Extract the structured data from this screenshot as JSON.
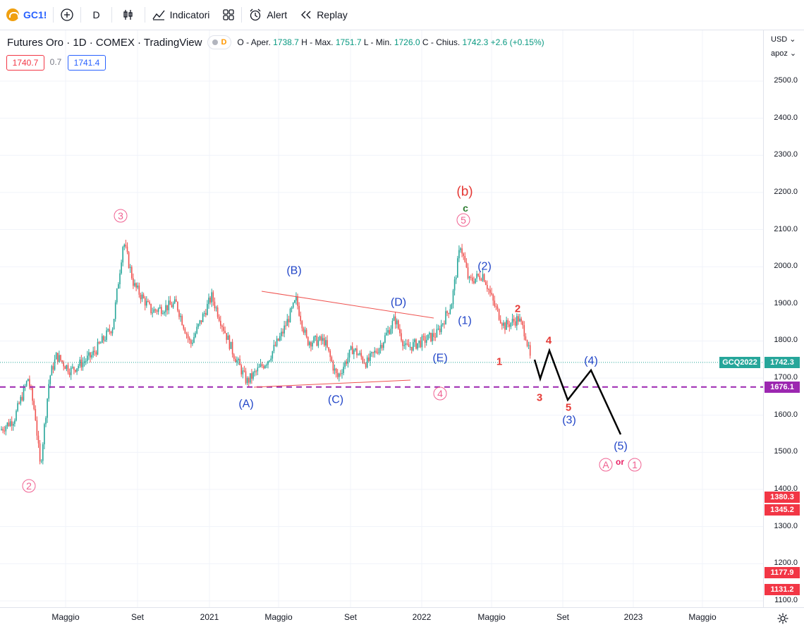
{
  "toolbar": {
    "symbol": "GC1!",
    "interval": "D",
    "indicators_label": "Indicatori",
    "alert_label": "Alert",
    "replay_label": "Replay"
  },
  "legend": {
    "title": "Futures Oro · 1D · COMEX · TradingView",
    "interval_badge": "D",
    "ohlc": {
      "open_label": "O - Aper.",
      "open": "1738.7",
      "high_label": "H - Max.",
      "high": "1751.7",
      "low_label": "L - Min.",
      "low": "1726.0",
      "close_label": "C - Chius.",
      "close": "1742.3",
      "change": "+2.6 (+0.15%)"
    },
    "bid": "1740.7",
    "spread": "0.7",
    "ask": "1741.4"
  },
  "price_axis": {
    "currency": "USD",
    "scale_mode": "apoz",
    "ticks": [
      "2500.0",
      "2400.0",
      "2300.0",
      "2200.0",
      "2100.0",
      "2000.0",
      "1900.0",
      "1800.0",
      "1700.0",
      "1600.0",
      "1500.0",
      "1400.0",
      "1300.0",
      "1200.0",
      "1100.0"
    ],
    "labels": [
      {
        "text": "GCQ2022",
        "color": "#26a69a"
      },
      {
        "text": "1742.3",
        "color": "#26a69a"
      },
      {
        "text": "1676.1",
        "color": "#9c27b0"
      },
      {
        "text": "1380.3",
        "color": "#f23645"
      },
      {
        "text": "1345.2",
        "color": "#f23645"
      },
      {
        "text": "1177.9",
        "color": "#f23645"
      },
      {
        "text": "1131.2",
        "color": "#f23645"
      }
    ]
  },
  "time_axis": {
    "ticks": [
      "Maggio",
      "Set",
      "2021",
      "Maggio",
      "Set",
      "2022",
      "Maggio",
      "Set",
      "2023",
      "Maggio"
    ]
  },
  "annotations": {
    "circled_3": "3",
    "circled_2": "2",
    "circled_5": "5",
    "circled_4": "4",
    "circled_A": "A",
    "circled_1": "1",
    "or": "or",
    "b": "(b)",
    "c": "c",
    "A": "(A)",
    "B": "(B)",
    "C": "(C)",
    "D": "(D)",
    "E": "(E)",
    "w1": "(1)",
    "w2": "(2)",
    "w3": "(3)",
    "w4": "(4)",
    "w5": "(5)",
    "r1": "1",
    "r2": "2",
    "r3": "3",
    "r4": "4",
    "r5": "5"
  },
  "colors": {
    "up": "#26a69a",
    "down": "#ef5350",
    "wave_blue": "#2246c8",
    "wave_red": "#e53935",
    "circle_pink": "#f06292",
    "support_purple": "#9c27b0",
    "triangle_line": "#ef5350"
  }
}
